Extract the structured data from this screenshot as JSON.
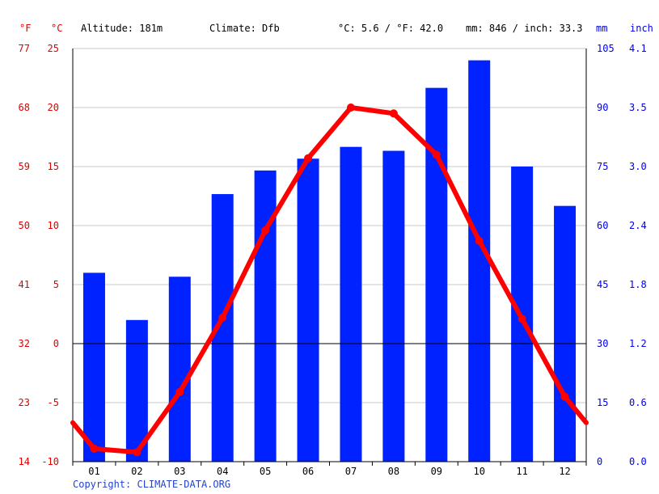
{
  "header": {
    "unit_f": "°F",
    "unit_c": "°C",
    "altitude": "Altitude: 181m",
    "climate": "Climate: Dfb",
    "avg_temp": "°C: 5.6 / °F: 42.0",
    "precip_total": "mm: 846 / inch: 33.3",
    "unit_mm": "mm",
    "unit_inch": "inch"
  },
  "copyright": "Copyright: CLIMATE-DATA.ORG",
  "colors": {
    "temperature": "#ff0000",
    "precipitation": "#0022ff",
    "axis_temp": "#e00000",
    "axis_precip": "#0000ee"
  },
  "chart_data": {
    "type": "bar",
    "categories": [
      "01",
      "02",
      "03",
      "04",
      "05",
      "06",
      "07",
      "08",
      "09",
      "10",
      "11",
      "12"
    ],
    "series": [
      {
        "kind": "bar",
        "axis": "precipitation",
        "unit": "mm",
        "values": [
          48,
          36,
          47,
          68,
          74,
          77,
          80,
          79,
          95,
          102,
          75,
          65
        ]
      },
      {
        "kind": "line",
        "axis": "temperature",
        "unit": "°C",
        "values": [
          -8.9,
          -9.2,
          -4.1,
          2.2,
          9.6,
          15.7,
          20.0,
          19.5,
          16.0,
          8.7,
          2.1,
          -4.5
        ]
      }
    ],
    "ylim_temp_c": [
      -10,
      25
    ],
    "yticks_temp_c": [
      "-10",
      "-5",
      "0",
      "5",
      "10",
      "15",
      "20",
      "25"
    ],
    "yticks_temp_f": [
      "14",
      "23",
      "32",
      "41",
      "50",
      "59",
      "68",
      "77"
    ],
    "ylim_precip_mm": [
      0,
      105
    ],
    "yticks_precip_mm": [
      "0",
      "15",
      "30",
      "45",
      "60",
      "75",
      "90",
      "105"
    ],
    "yticks_precip_inch": [
      "0.0",
      "0.6",
      "1.2",
      "1.8",
      "2.4",
      "3.0",
      "3.5",
      "4.1"
    ],
    "grid": true
  }
}
